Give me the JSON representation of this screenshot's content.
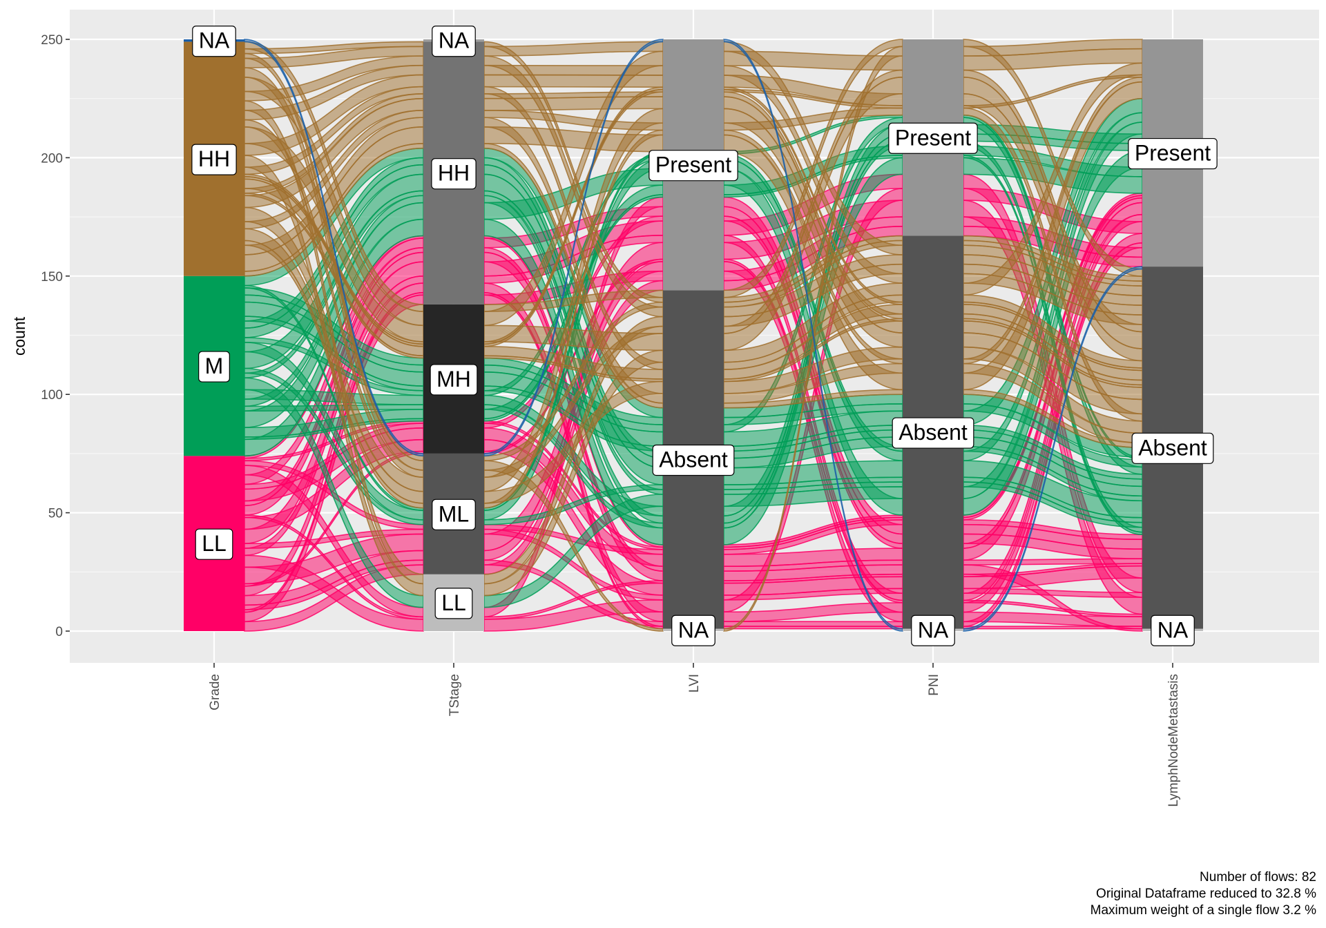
{
  "chart_data": {
    "type": "alluvial",
    "title": "",
    "xlabel": "",
    "ylabel": "count",
    "ylim": [
      -25,
      252
    ],
    "y_ticks": [
      0,
      50,
      100,
      150,
      200,
      250
    ],
    "y_tick_labels": [
      "0",
      "50",
      "100",
      "150",
      "200",
      "250"
    ],
    "axes": [
      {
        "name": "Grade",
        "strata": [
          {
            "label": "LL",
            "count": 74,
            "color": "#ff0066"
          },
          {
            "label": "M",
            "count": 76,
            "color": "#009e57"
          },
          {
            "label": "HH",
            "count": 99,
            "color": "#a0702e"
          },
          {
            "label": "NA",
            "count": 1,
            "color": "#1a5fa8"
          }
        ]
      },
      {
        "name": "TStage",
        "strata": [
          {
            "label": "LL",
            "count": 24,
            "color": "#bdbdbd"
          },
          {
            "label": "ML",
            "count": 51,
            "color": "#545454"
          },
          {
            "label": "MH",
            "count": 63,
            "color": "#262626"
          },
          {
            "label": "HH",
            "count": 111,
            "color": "#737373"
          },
          {
            "label": "NA",
            "count": 1,
            "color": "#9e9e9e"
          }
        ]
      },
      {
        "name": "LVI",
        "strata": [
          {
            "label": "NA",
            "count": 1,
            "color": "#bdbdbd"
          },
          {
            "label": "Absent",
            "count": 143,
            "color": "#545454"
          },
          {
            "label": "Present",
            "count": 106,
            "color": "#959595"
          }
        ]
      },
      {
        "name": "PNI",
        "strata": [
          {
            "label": "NA",
            "count": 1,
            "color": "#bdbdbd"
          },
          {
            "label": "Absent",
            "count": 166,
            "color": "#545454"
          },
          {
            "label": "Present",
            "count": 83,
            "color": "#959595"
          }
        ]
      },
      {
        "name": "LymphNodeMetastasis",
        "strata": [
          {
            "label": "NA",
            "count": 1,
            "color": "#bdbdbd"
          },
          {
            "label": "Absent",
            "count": 153,
            "color": "#545454"
          },
          {
            "label": "Present",
            "count": 96,
            "color": "#959595"
          }
        ]
      }
    ],
    "caption": [
      "Number of flows: 82",
      "Original Dataframe reduced to 32.8 %",
      "Maximum weight of a single flow 3.2 %"
    ],
    "grid": true,
    "legend": "none"
  }
}
